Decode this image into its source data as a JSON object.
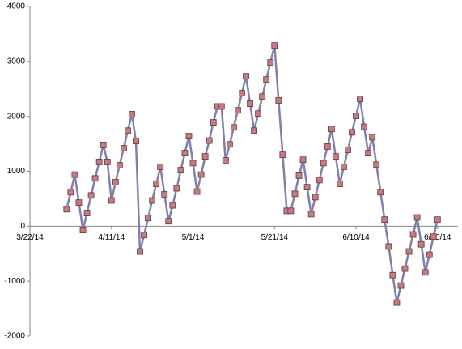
{
  "chart_data": {
    "type": "line",
    "x": [
      "2014-03-31",
      "2014-04-01",
      "2014-04-02",
      "2014-04-03",
      "2014-04-04",
      "2014-04-05",
      "2014-04-06",
      "2014-04-07",
      "2014-04-08",
      "2014-04-09",
      "2014-04-10",
      "2014-04-11",
      "2014-04-12",
      "2014-04-13",
      "2014-04-14",
      "2014-04-15",
      "2014-04-16",
      "2014-04-17",
      "2014-04-18",
      "2014-04-19",
      "2014-04-20",
      "2014-04-21",
      "2014-04-22",
      "2014-04-23",
      "2014-04-24",
      "2014-04-25",
      "2014-04-26",
      "2014-04-27",
      "2014-04-28",
      "2014-04-29",
      "2014-04-30",
      "2014-05-01",
      "2014-05-02",
      "2014-05-03",
      "2014-05-04",
      "2014-05-05",
      "2014-05-06",
      "2014-05-07",
      "2014-05-08",
      "2014-05-09",
      "2014-05-10",
      "2014-05-11",
      "2014-05-12",
      "2014-05-13",
      "2014-05-14",
      "2014-05-15",
      "2014-05-16",
      "2014-05-17",
      "2014-05-18",
      "2014-05-19",
      "2014-05-20",
      "2014-05-21",
      "2014-05-22",
      "2014-05-23",
      "2014-05-24",
      "2014-05-25",
      "2014-05-26",
      "2014-05-27",
      "2014-05-28",
      "2014-05-29",
      "2014-05-30",
      "2014-05-31",
      "2014-06-01",
      "2014-06-02",
      "2014-06-03",
      "2014-06-04",
      "2014-06-05",
      "2014-06-06",
      "2014-06-07",
      "2014-06-08",
      "2014-06-09",
      "2014-06-10",
      "2014-06-11",
      "2014-06-12",
      "2014-06-13",
      "2014-06-14",
      "2014-06-15",
      "2014-06-16",
      "2014-06-17",
      "2014-06-18",
      "2014-06-19",
      "2014-06-20",
      "2014-06-21",
      "2014-06-22",
      "2014-06-23",
      "2014-06-24",
      "2014-06-25",
      "2014-06-26",
      "2014-06-27",
      "2014-06-28",
      "2014-06-29",
      "2014-06-30"
    ],
    "series": [
      {
        "color": "#7f80ab",
        "marker_color": "#c77a80",
        "values": [
          310,
          620,
          940,
          430,
          -70,
          240,
          560,
          870,
          1170,
          1480,
          1170,
          470,
          800,
          1110,
          1420,
          1740,
          2040,
          1550,
          -460,
          -160,
          150,
          470,
          770,
          1080,
          580,
          90,
          380,
          690,
          1020,
          1330,
          1640,
          1150,
          630,
          940,
          1270,
          1560,
          1890,
          2180,
          2180,
          1200,
          1490,
          1800,
          2110,
          2420,
          2730,
          2230,
          1740,
          2050,
          2360,
          2670,
          2980,
          3290,
          2290,
          1300,
          280,
          280,
          590,
          920,
          1210,
          710,
          220,
          530,
          840,
          1150,
          1450,
          1770,
          1270,
          770,
          1080,
          1390,
          1710,
          2010,
          2320,
          1810,
          1330,
          1620,
          1120,
          620,
          120,
          -370,
          -890,
          -1390,
          -1080,
          -770,
          -460,
          -150,
          160,
          -330,
          -840,
          -520,
          -190,
          120
        ]
      }
    ],
    "xlim": [
      "2014-03-22",
      "2014-07-05"
    ],
    "xticks": [
      {
        "value": "2014-03-22",
        "label": "3/22/14"
      },
      {
        "value": "2014-04-11",
        "label": "4/11/14"
      },
      {
        "value": "2014-05-01",
        "label": "5/1/14"
      },
      {
        "value": "2014-05-21",
        "label": "5/21/14"
      },
      {
        "value": "2014-06-10",
        "label": "6/10/14"
      },
      {
        "value": "2014-06-30",
        "label": "6/30/14"
      }
    ],
    "ylim": [
      -2000,
      4000
    ],
    "yticks": [
      -2000,
      -1000,
      0,
      1000,
      2000,
      3000,
      4000
    ]
  }
}
